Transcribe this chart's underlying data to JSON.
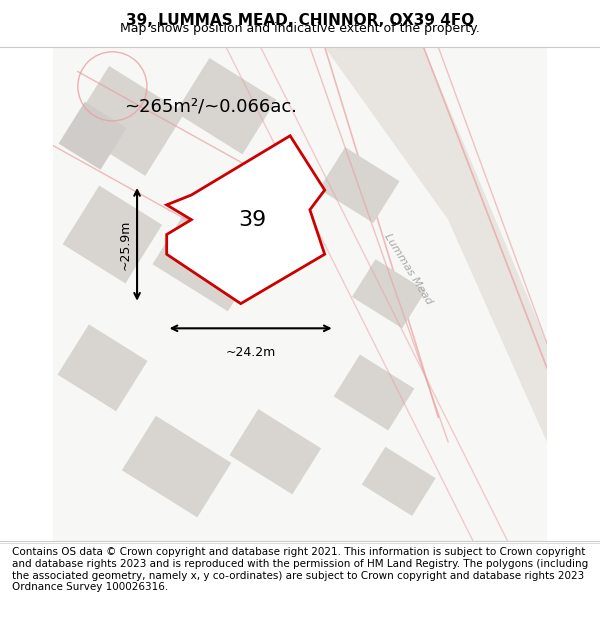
{
  "title": "39, LUMMAS MEAD, CHINNOR, OX39 4FQ",
  "subtitle": "Map shows position and indicative extent of the property.",
  "footer": "Contains OS data © Crown copyright and database right 2021. This information is subject to Crown copyright and database rights 2023 and is reproduced with the permission of HM Land Registry. The polygons (including the associated geometry, namely x, y co-ordinates) are subject to Crown copyright and database rights 2023 Ordnance Survey 100026316.",
  "area_label": "~265m²/~0.066ac.",
  "width_label": "~24.2m",
  "height_label": "~25.9m",
  "number_label": "39",
  "background_color": "#f7f7f5",
  "map_bg": "#f0eeec",
  "road_color": "#e8e4e0",
  "building_fill": "#d9d5d0",
  "red_outline": "#cc0000",
  "pink_road_outline": "#e8a0a0",
  "street_label": "Lummas Mead",
  "title_fontsize": 11,
  "subtitle_fontsize": 9,
  "footer_fontsize": 7.5
}
